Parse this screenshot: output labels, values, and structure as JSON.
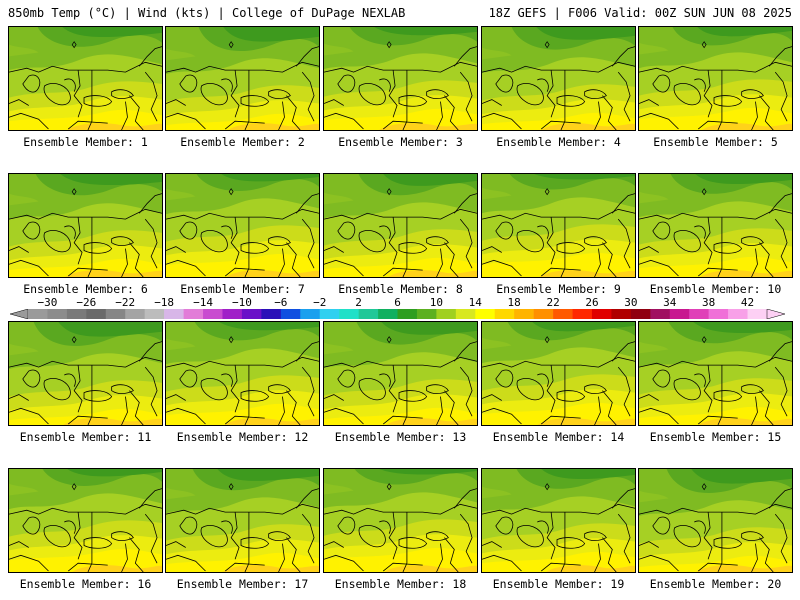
{
  "header": {
    "left": "850mb Temp (°C) | Wind (kts) | College of DuPage NEXLAB",
    "right": "18Z GEFS | F006 Valid: 00Z SUN JUN 08 2025"
  },
  "panel_label_prefix": "Ensemble Member: ",
  "members": [
    {
      "label": "Ensemble Member: 1"
    },
    {
      "label": "Ensemble Member: 2"
    },
    {
      "label": "Ensemble Member: 3"
    },
    {
      "label": "Ensemble Member: 4"
    },
    {
      "label": "Ensemble Member: 5"
    },
    {
      "label": "Ensemble Member: 6"
    },
    {
      "label": "Ensemble Member: 7"
    },
    {
      "label": "Ensemble Member: 8"
    },
    {
      "label": "Ensemble Member: 9"
    },
    {
      "label": "Ensemble Member: 10"
    },
    {
      "label": "Ensemble Member: 11"
    },
    {
      "label": "Ensemble Member: 12"
    },
    {
      "label": "Ensemble Member: 13"
    },
    {
      "label": "Ensemble Member: 14"
    },
    {
      "label": "Ensemble Member: 15"
    },
    {
      "label": "Ensemble Member: 16"
    },
    {
      "label": "Ensemble Member: 17"
    },
    {
      "label": "Ensemble Member: 18"
    },
    {
      "label": "Ensemble Member: 19"
    },
    {
      "label": "Ensemble Member: 20"
    }
  ],
  "colorbar": {
    "tick_labels": [
      "−30",
      "−26",
      "−22",
      "−18",
      "−14",
      "−10",
      "−6",
      "−2",
      "2",
      "6",
      "10",
      "14",
      "18",
      "22",
      "26",
      "30",
      "34",
      "38",
      "42"
    ],
    "colors": [
      "#9a9a9a",
      "#8c8c8c",
      "#7a7a7a",
      "#6a6a6a",
      "#868686",
      "#a4a4a4",
      "#bcbcbc",
      "#d8b6e8",
      "#e27cd8",
      "#c94cd0",
      "#a020c8",
      "#6a10c8",
      "#2a10b8",
      "#1050e0",
      "#1aa0ee",
      "#30d0f0",
      "#20e0c8",
      "#20c898",
      "#10b060",
      "#2e9e20",
      "#5cb020",
      "#a0d020",
      "#d8e820",
      "#ffff00",
      "#ffd800",
      "#ffb400",
      "#ff9000",
      "#ff5a00",
      "#ff2800",
      "#e00000",
      "#b00000",
      "#900010",
      "#a01060",
      "#c81890",
      "#e040b8",
      "#f070d8",
      "#f8a0e8",
      "#fdd0f4"
    ]
  }
}
